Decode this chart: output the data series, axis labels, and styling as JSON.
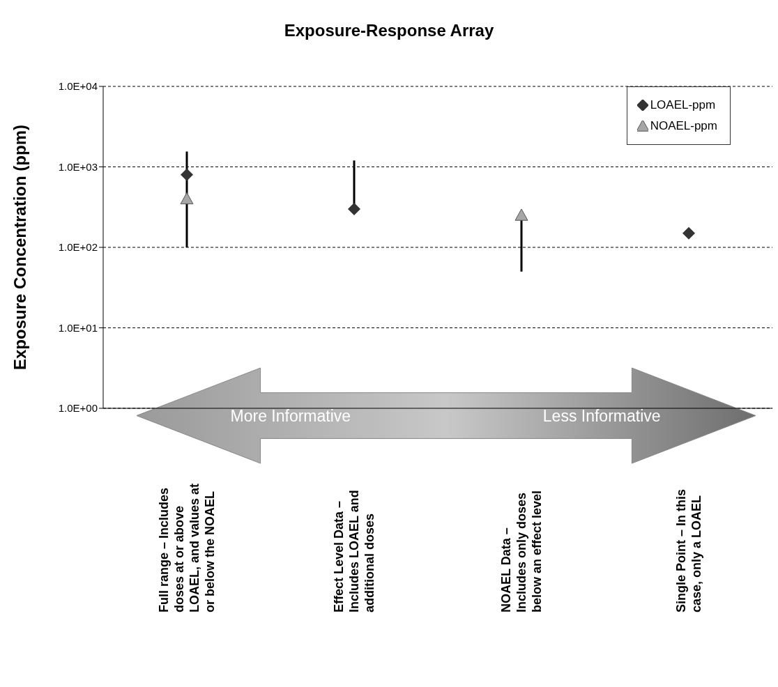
{
  "chart_data": {
    "type": "scatter",
    "title": "Exposure-Response Array",
    "ylabel": "Exposure Concentration (ppm)",
    "categories": [
      "Full range – Includes\ndoses at or above\nLOAEL, and values at\nor below the  NOAEL",
      "Effect Level Data –\nIncludes LOAEL and\nadditional doses",
      "NOAEL Data –\nIncludes only doses\nbelow an effect level",
      "Single Point – In this\ncase, only a LOAEL"
    ],
    "series": [
      {
        "name": "LOAEL-ppm",
        "color": "#333333",
        "marker": "diamond",
        "values": [
          800,
          300,
          null,
          150
        ],
        "errors": [
          [
            100,
            1550
          ],
          [
            300,
            1200
          ],
          null,
          null
        ]
      },
      {
        "name": "NOAEL-ppm",
        "color": "#a6a6a6",
        "marker": "triangle",
        "values": [
          400,
          null,
          250,
          null
        ],
        "errors": [
          null,
          null,
          [
            50,
            250
          ],
          null
        ]
      }
    ],
    "log": "y",
    "ylim": [
      1,
      10000
    ],
    "yticks": [
      {
        "value": 1,
        "label": "1.0E+00"
      },
      {
        "value": 10,
        "label": "1.0E+01"
      },
      {
        "value": 100,
        "label": "1.0E+02"
      },
      {
        "value": 1000,
        "label": "1.0E+03"
      },
      {
        "value": 10000,
        "label": "1.0E+04"
      }
    ],
    "grid": "y",
    "legend": "top right",
    "annotations": [
      "More Informative",
      "Less Informative"
    ]
  }
}
